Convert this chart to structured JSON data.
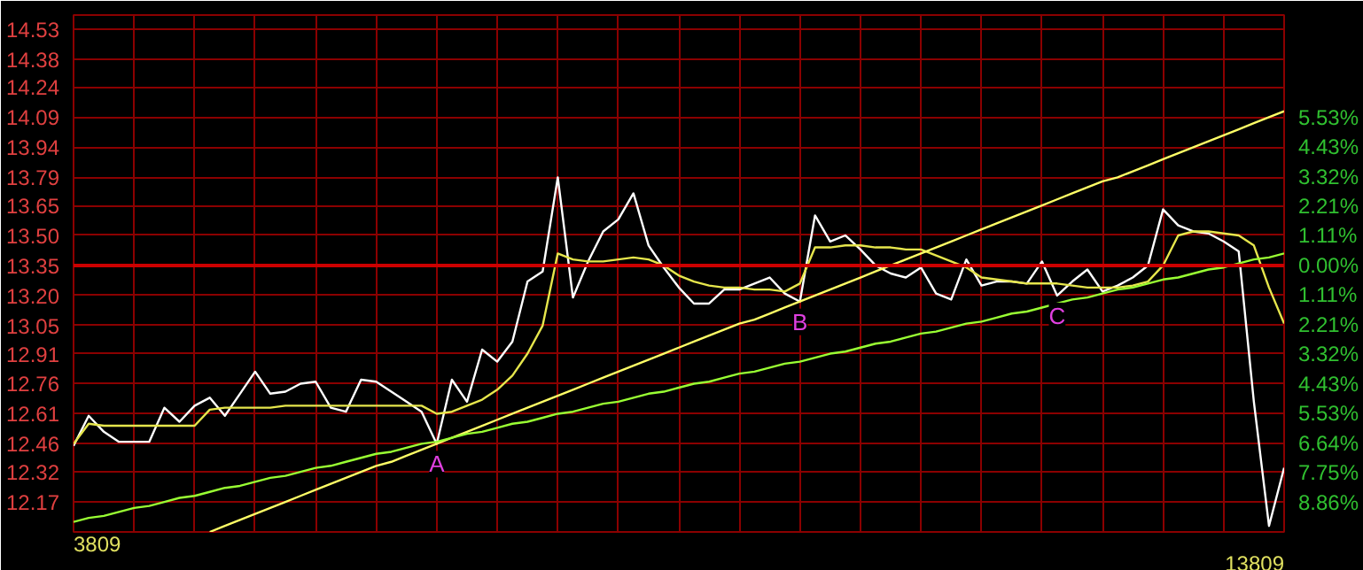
{
  "chart_data": {
    "type": "line",
    "categories": [
      null,
      null,
      null,
      null,
      null,
      null,
      null,
      null,
      null,
      null,
      null,
      null,
      null,
      null,
      null,
      null,
      null,
      null,
      null,
      null,
      null,
      null,
      null,
      null,
      null,
      null,
      null,
      null,
      null,
      null,
      null,
      null,
      null,
      null,
      null,
      null,
      null,
      null,
      null,
      null,
      null,
      null,
      null,
      null,
      null,
      null,
      null,
      null,
      null,
      null,
      null,
      null,
      null,
      null,
      null,
      null,
      null,
      null,
      null,
      null,
      null,
      null,
      null,
      null,
      null,
      null,
      null,
      null,
      null,
      null,
      null,
      null,
      null,
      null,
      null,
      null,
      null,
      null,
      null,
      null,
      null
    ],
    "series": [
      {
        "color": "#ffffff",
        "values": [
          12.45,
          12.6,
          12.52,
          12.47,
          12.47,
          12.47,
          12.64,
          12.57,
          12.65,
          12.69,
          12.6,
          12.71,
          12.82,
          12.71,
          12.72,
          12.76,
          12.77,
          12.64,
          12.62,
          12.78,
          12.77,
          12.72,
          12.67,
          12.62,
          12.46,
          12.78,
          12.67,
          12.93,
          12.87,
          12.97,
          13.27,
          13.32,
          13.79,
          13.19,
          13.37,
          13.52,
          13.58,
          13.71,
          13.45,
          13.34,
          13.24,
          13.16,
          13.16,
          13.23,
          13.23,
          13.26,
          13.29,
          13.21,
          13.17,
          13.6,
          13.47,
          13.5,
          13.43,
          13.35,
          13.31,
          13.29,
          13.34,
          13.21,
          13.18,
          13.38,
          13.25,
          13.27,
          13.27,
          13.26,
          13.37,
          13.2,
          13.27,
          13.33,
          13.22,
          13.25,
          13.29,
          13.35,
          13.63,
          13.55,
          13.52,
          13.51,
          13.47,
          13.42,
          12.67,
          12.05,
          12.34
        ]
      },
      {
        "color": "#e6e64c",
        "values": [
          12.46,
          12.56,
          12.55,
          12.55,
          12.55,
          12.55,
          12.55,
          12.55,
          12.55,
          12.63,
          12.64,
          12.64,
          12.64,
          12.64,
          12.65,
          12.65,
          12.65,
          12.65,
          12.65,
          12.65,
          12.65,
          12.65,
          12.65,
          12.65,
          12.61,
          12.62,
          12.65,
          12.68,
          12.73,
          12.8,
          12.91,
          13.05,
          13.41,
          13.38,
          13.37,
          13.37,
          13.38,
          13.39,
          13.38,
          13.35,
          13.3,
          13.27,
          13.25,
          13.24,
          13.24,
          13.23,
          13.23,
          13.22,
          13.26,
          13.44,
          13.44,
          13.45,
          13.45,
          13.44,
          13.44,
          13.43,
          13.43,
          13.4,
          13.37,
          13.34,
          13.29,
          13.28,
          13.27,
          13.26,
          13.26,
          13.26,
          13.25,
          13.24,
          13.24,
          13.24,
          13.25,
          13.27,
          13.35,
          13.5,
          13.52,
          13.52,
          13.51,
          13.5,
          13.45,
          13.24,
          13.06
        ]
      },
      {
        "color": "#ffff66",
        "values": [
          null,
          null,
          null,
          null,
          null,
          null,
          null,
          null,
          null,
          12.02,
          12.05,
          12.08,
          12.11,
          12.14,
          12.17,
          12.2,
          12.23,
          12.26,
          12.29,
          12.32,
          12.35,
          12.37,
          12.4,
          12.43,
          12.46,
          12.49,
          12.52,
          12.55,
          12.58,
          12.61,
          12.64,
          12.67,
          12.7,
          12.73,
          12.76,
          12.79,
          12.82,
          12.85,
          12.88,
          12.91,
          12.94,
          12.97,
          13.0,
          13.03,
          13.06,
          13.08,
          13.11,
          13.14,
          13.17,
          13.2,
          13.23,
          13.26,
          13.29,
          13.32,
          13.35,
          13.38,
          13.41,
          13.44,
          13.47,
          13.5,
          13.53,
          13.56,
          13.59,
          13.62,
          13.65,
          13.68,
          13.71,
          13.74,
          13.77,
          13.79,
          13.82,
          13.85,
          13.88,
          13.91,
          13.94,
          13.97,
          14.0,
          14.03,
          14.06,
          14.09,
          14.12
        ]
      },
      {
        "color": "#99ff33",
        "values": [
          12.07,
          12.09,
          12.1,
          12.12,
          12.14,
          12.15,
          12.17,
          12.19,
          12.2,
          12.22,
          12.24,
          12.25,
          12.27,
          12.29,
          12.3,
          12.32,
          12.34,
          12.35,
          12.37,
          12.39,
          12.41,
          12.42,
          12.44,
          12.46,
          12.47,
          12.49,
          12.51,
          12.52,
          12.54,
          12.56,
          12.57,
          12.59,
          12.61,
          12.62,
          12.64,
          12.66,
          12.67,
          12.69,
          12.71,
          12.72,
          12.74,
          12.76,
          12.77,
          12.79,
          12.81,
          12.82,
          12.84,
          12.86,
          12.87,
          12.89,
          12.91,
          12.92,
          12.94,
          12.96,
          12.97,
          12.99,
          13.01,
          13.02,
          13.04,
          13.06,
          13.07,
          13.09,
          13.11,
          13.12,
          13.14,
          13.16,
          13.18,
          13.19,
          13.21,
          13.23,
          13.24,
          13.26,
          13.28,
          13.29,
          13.31,
          13.33,
          13.34,
          13.36,
          13.38,
          13.39,
          13.41
        ]
      }
    ],
    "ylim": [
      12.02,
      14.6
    ],
    "yticks": [
      14.53,
      14.38,
      14.24,
      14.09,
      13.94,
      13.79,
      13.65,
      {
        "value": 13.5,
        "label": "13.50"
      },
      13.35,
      {
        "value": 13.2,
        "label": "13.20"
      },
      13.05,
      12.91,
      12.76,
      12.61,
      12.46,
      12.32,
      12.17
    ],
    "y2lim": [
      -9.96,
      9.36
    ],
    "y2ticks": [
      {
        "value": 5.53,
        "label": "5.53%"
      },
      {
        "value": 4.43,
        "label": "4.43%"
      },
      {
        "value": 3.32,
        "label": "3.32%"
      },
      {
        "value": 2.21,
        "label": "2.21%"
      },
      {
        "value": 1.11,
        "label": "1.11%"
      },
      {
        "value": 0,
        "label": "0.00%"
      },
      {
        "value": -1.11,
        "label": "1.11%"
      },
      {
        "value": -2.21,
        "label": "2.21%"
      },
      {
        "value": -3.32,
        "label": "3.32%"
      },
      {
        "value": -4.43,
        "label": "4.43%"
      },
      {
        "value": -5.53,
        "label": "5.53%"
      },
      {
        "value": -6.64,
        "label": "6.64%"
      },
      {
        "value": -7.75,
        "label": "7.75%"
      },
      {
        "value": -8.86,
        "label": "8.86%"
      }
    ],
    "ref_lines": [
      {
        "axis": "y",
        "value": 13.35,
        "color": "#cc0000"
      }
    ],
    "grid": true,
    "annotations": [
      {
        "text": "A",
        "y": 12.46
      },
      {
        "text": "B",
        "y": 13.17
      },
      {
        "text": "C",
        "y": 13.2
      },
      "3809",
      "13809"
    ]
  }
}
